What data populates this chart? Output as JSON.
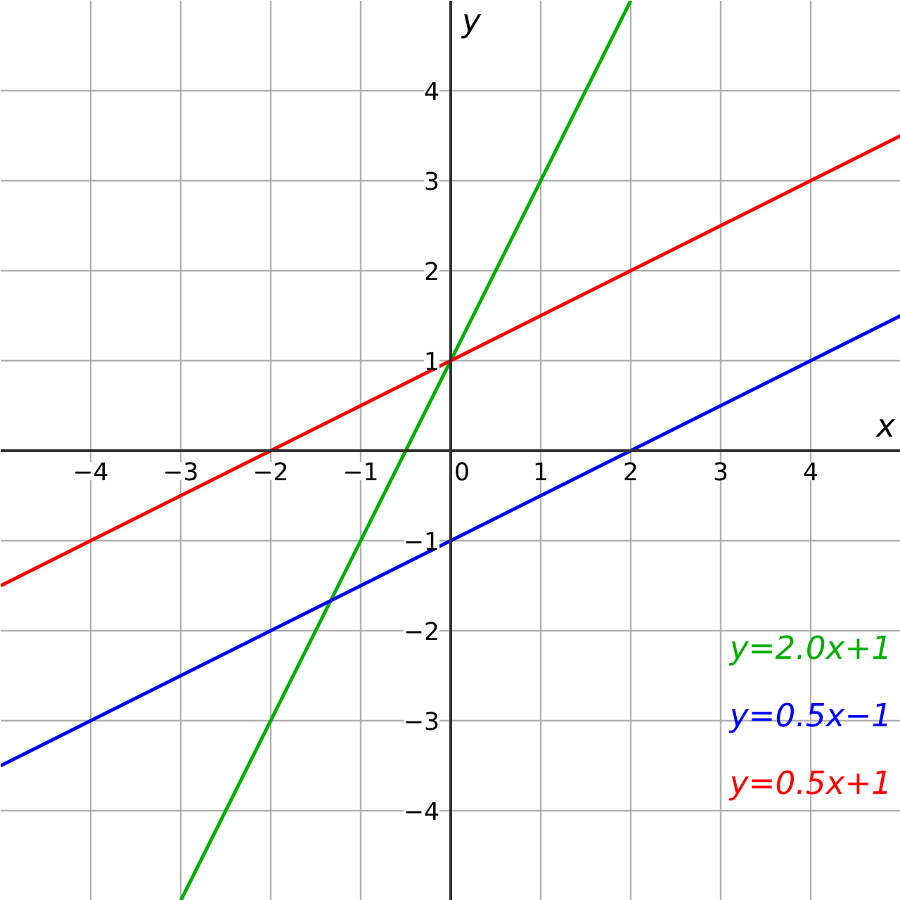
{
  "chart_data": {
    "type": "line",
    "xlabel": "x",
    "ylabel": "y",
    "xlim": [
      -5,
      5
    ],
    "ylim": [
      -5,
      5
    ],
    "xticks": [
      {
        "value": -4,
        "label": "−4"
      },
      {
        "value": -3,
        "label": "−3"
      },
      {
        "value": -2,
        "label": "−2"
      },
      {
        "value": -1,
        "label": "−1"
      },
      0,
      1,
      2,
      3,
      4
    ],
    "yticks": [
      {
        "value": -4,
        "label": "−4"
      },
      {
        "value": -3,
        "label": "−3"
      },
      {
        "value": -2,
        "label": "−2"
      },
      {
        "value": -1,
        "label": "−1"
      },
      {
        "value": 0,
        "label": null
      },
      1,
      2,
      3,
      4
    ],
    "grid": true,
    "legend": "bottom right",
    "line_style": "solid",
    "series": [
      {
        "name": "y=2.0x+1",
        "color": "#00b000",
        "x": [
          -3,
          2
        ],
        "values": [
          -5,
          5
        ]
      },
      {
        "name": "y=0.5x−1",
        "color": "#0000ff",
        "x": [
          -5,
          5
        ],
        "values": [
          -3.5,
          1.5
        ]
      },
      {
        "name": "y=0.5x+1",
        "color": "#ff0000",
        "x": [
          -5,
          5
        ],
        "values": [
          -1.5,
          3.5
        ]
      }
    ]
  }
}
